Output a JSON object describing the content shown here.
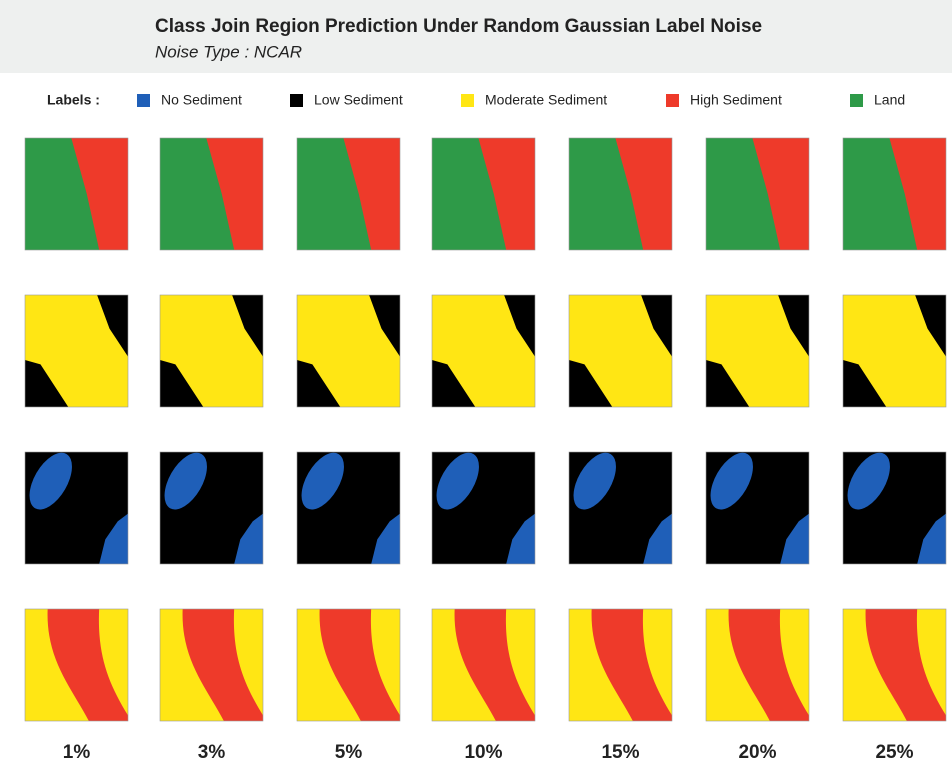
{
  "header": {
    "title": "Class Join Region Prediction Under Random Gaussian Label Noise",
    "subtitle": "Noise Type : NCAR"
  },
  "legend": {
    "title": "Labels :",
    "items": [
      {
        "label": "No Sediment",
        "color": "#1f5fb8"
      },
      {
        "label": "Low Sediment",
        "color": "#000000"
      },
      {
        "label": "Moderate Sediment",
        "color": "#ffe614"
      },
      {
        "label": "High Sediment",
        "color": "#ee3a2a"
      },
      {
        "label": "Land",
        "color": "#2e9a48"
      }
    ]
  },
  "columns": [
    "1%",
    "3%",
    "5%",
    "10%",
    "15%",
    "20%",
    "25%"
  ]
}
